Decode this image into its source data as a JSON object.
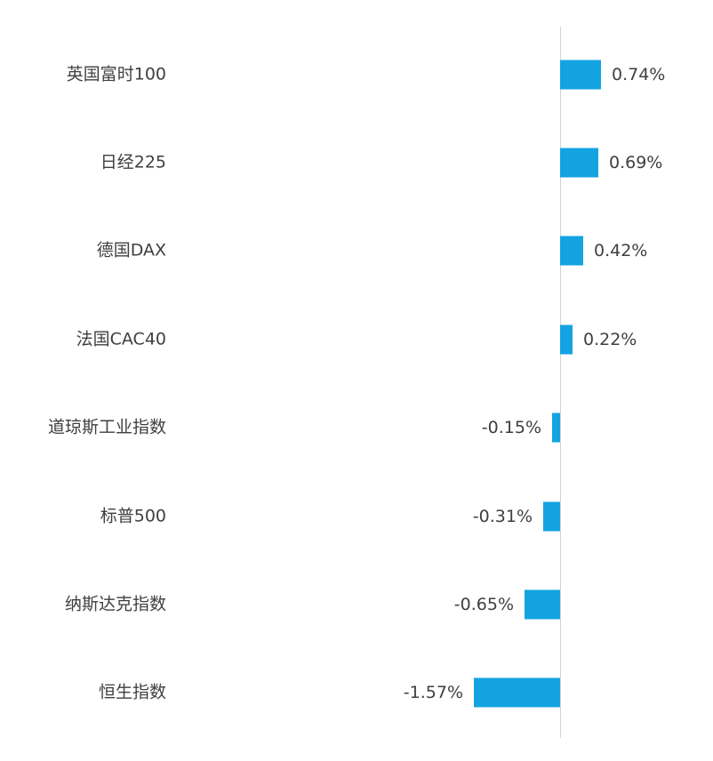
{
  "chart_data": {
    "type": "bar",
    "orientation": "horizontal",
    "title": "",
    "xlabel": "",
    "ylabel": "",
    "grid": false,
    "legend": false,
    "categories": [
      "英国富时100",
      "日经225",
      "德国DAX",
      "法国CAC40",
      "道琼斯工业指数",
      "标普500",
      "纳斯达克指数",
      "恒生指数"
    ],
    "values": [
      0.74,
      0.69,
      0.42,
      0.22,
      -0.15,
      -0.31,
      -0.65,
      -1.57
    ],
    "value_labels": [
      "0.74%",
      "0.69%",
      "0.42%",
      "0.22%",
      "-0.15%",
      "-0.31%",
      "-0.65%",
      "-1.57%"
    ],
    "bar_color": "#14A3E1",
    "axis_line_color": "#D4D4D4",
    "label_color": "#3F3F3F",
    "background_color": "#FFFFFF"
  }
}
